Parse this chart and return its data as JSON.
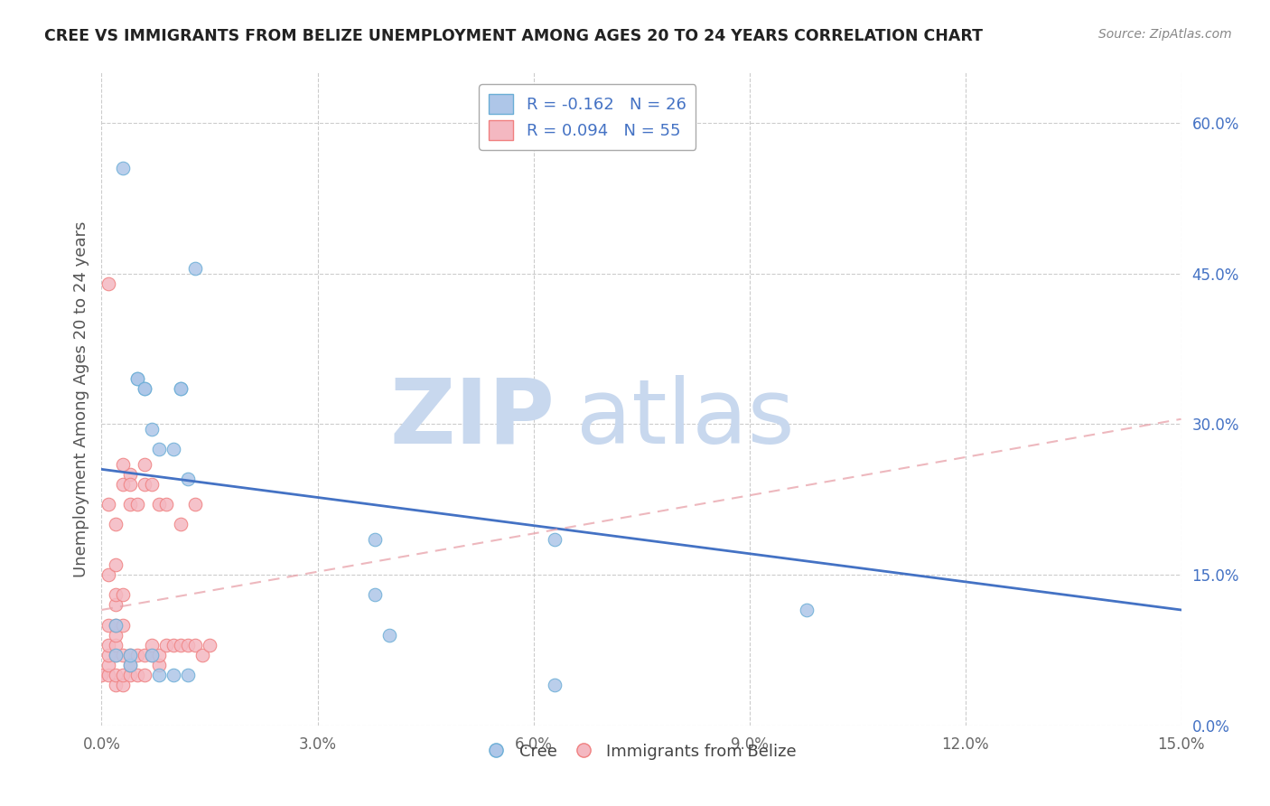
{
  "title": "CREE VS IMMIGRANTS FROM BELIZE UNEMPLOYMENT AMONG AGES 20 TO 24 YEARS CORRELATION CHART",
  "source": "Source: ZipAtlas.com",
  "ylabel": "Unemployment Among Ages 20 to 24 years",
  "xlim": [
    0.0,
    0.15
  ],
  "ylim": [
    0.0,
    0.65
  ],
  "xticks": [
    0.0,
    0.03,
    0.06,
    0.09,
    0.12,
    0.15
  ],
  "xtick_labels": [
    "0.0%",
    "3.0%",
    "6.0%",
    "9.0%",
    "12.0%",
    "15.0%"
  ],
  "yticks_right": [
    0.0,
    0.15,
    0.3,
    0.45,
    0.6
  ],
  "ytick_right_labels": [
    "0.0%",
    "15.0%",
    "30.0%",
    "45.0%",
    "60.0%"
  ],
  "cree_color": "#aec6e8",
  "belize_color": "#f4b8c1",
  "cree_edge": "#6baed6",
  "belize_edge": "#f08080",
  "cree_R": -0.162,
  "cree_N": 26,
  "belize_R": 0.094,
  "belize_N": 55,
  "cree_line_color": "#4472c4",
  "belize_line_color": "#e8a0a8",
  "watermark_zip_color": "#c8d8ee",
  "watermark_atlas_color": "#c8d8ee",
  "cree_line_y0": 0.255,
  "cree_line_y1": 0.115,
  "belize_line_y0": 0.115,
  "belize_line_y1": 0.305,
  "cree_x": [
    0.002,
    0.002,
    0.003,
    0.004,
    0.004,
    0.005,
    0.005,
    0.006,
    0.006,
    0.007,
    0.007,
    0.008,
    0.008,
    0.01,
    0.01,
    0.011,
    0.011,
    0.012,
    0.012,
    0.013,
    0.038,
    0.038,
    0.04,
    0.063,
    0.063,
    0.098
  ],
  "cree_y": [
    0.1,
    0.07,
    0.555,
    0.06,
    0.07,
    0.345,
    0.345,
    0.335,
    0.335,
    0.295,
    0.07,
    0.275,
    0.05,
    0.05,
    0.275,
    0.335,
    0.335,
    0.245,
    0.05,
    0.455,
    0.185,
    0.13,
    0.09,
    0.185,
    0.04,
    0.115
  ],
  "belize_x": [
    0.0,
    0.001,
    0.001,
    0.001,
    0.001,
    0.001,
    0.001,
    0.001,
    0.002,
    0.002,
    0.002,
    0.002,
    0.002,
    0.002,
    0.002,
    0.002,
    0.002,
    0.003,
    0.003,
    0.003,
    0.003,
    0.003,
    0.003,
    0.004,
    0.004,
    0.004,
    0.004,
    0.004,
    0.005,
    0.005,
    0.005,
    0.006,
    0.006,
    0.006,
    0.006,
    0.007,
    0.007,
    0.007,
    0.008,
    0.008,
    0.008,
    0.009,
    0.009,
    0.01,
    0.011,
    0.011,
    0.012,
    0.013,
    0.013,
    0.014,
    0.015,
    0.001,
    0.002,
    0.003,
    0.004
  ],
  "belize_y": [
    0.05,
    0.05,
    0.06,
    0.07,
    0.08,
    0.1,
    0.15,
    0.44,
    0.04,
    0.05,
    0.07,
    0.08,
    0.09,
    0.1,
    0.12,
    0.13,
    0.2,
    0.04,
    0.05,
    0.07,
    0.1,
    0.13,
    0.24,
    0.05,
    0.06,
    0.07,
    0.22,
    0.25,
    0.05,
    0.07,
    0.22,
    0.05,
    0.07,
    0.24,
    0.26,
    0.07,
    0.08,
    0.24,
    0.06,
    0.07,
    0.22,
    0.08,
    0.22,
    0.08,
    0.08,
    0.2,
    0.08,
    0.08,
    0.22,
    0.07,
    0.08,
    0.22,
    0.16,
    0.26,
    0.24
  ]
}
